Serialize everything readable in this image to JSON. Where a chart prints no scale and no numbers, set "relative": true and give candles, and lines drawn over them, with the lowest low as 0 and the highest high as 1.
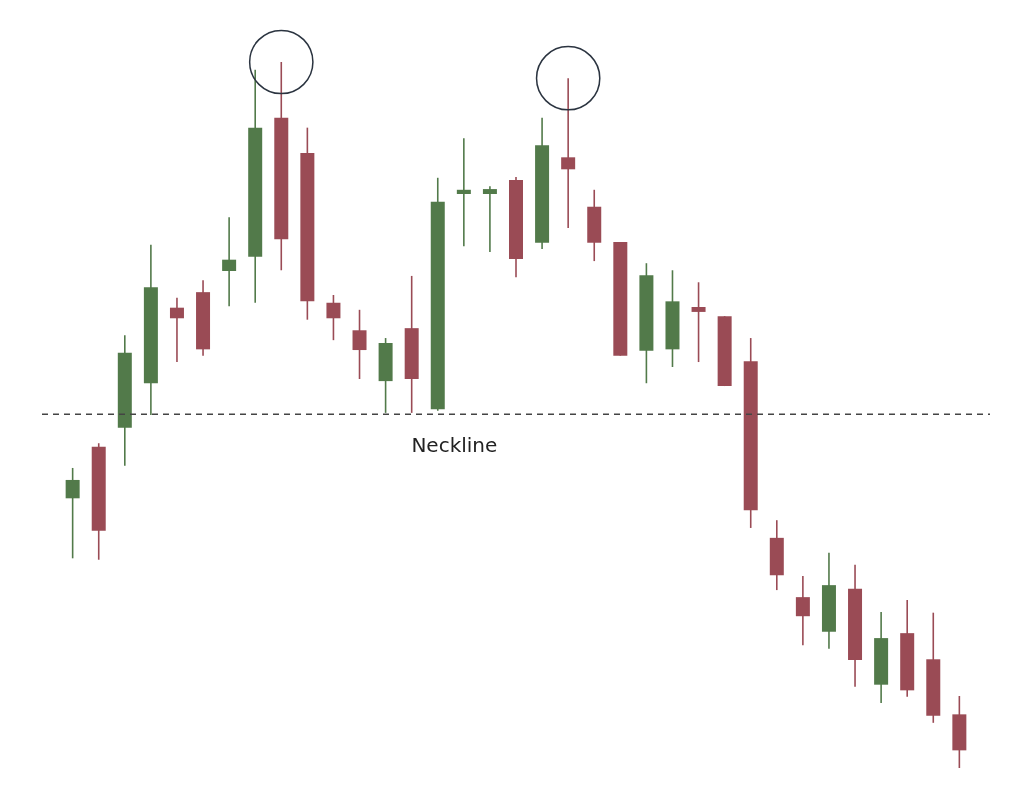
{
  "chart_data": {
    "type": "candlestick",
    "relative": true,
    "tick_labels": false,
    "categories": [
      null,
      null,
      null,
      null,
      null,
      null,
      null,
      null,
      null,
      null,
      null,
      null,
      null,
      null,
      null,
      null,
      null,
      null,
      null,
      null,
      null,
      null,
      null,
      null,
      null,
      null,
      null,
      null,
      null,
      null,
      null,
      null,
      null,
      null,
      null
    ],
    "ohlc": [
      [
        0.382,
        0.425,
        0.297,
        0.408
      ],
      [
        0.455,
        0.46,
        0.295,
        0.336
      ],
      [
        0.482,
        0.613,
        0.428,
        0.588
      ],
      [
        0.545,
        0.741,
        0.5,
        0.681
      ],
      [
        0.652,
        0.666,
        0.575,
        0.637
      ],
      [
        0.674,
        0.691,
        0.584,
        0.593
      ],
      [
        0.704,
        0.78,
        0.654,
        0.72
      ],
      [
        0.724,
        0.989,
        0.659,
        0.907
      ],
      [
        0.921,
        1.0,
        0.705,
        0.749
      ],
      [
        0.871,
        0.907,
        0.635,
        0.661
      ],
      [
        0.659,
        0.67,
        0.606,
        0.637
      ],
      [
        0.62,
        0.649,
        0.551,
        0.592
      ],
      [
        0.548,
        0.609,
        0.503,
        0.602
      ],
      [
        0.623,
        0.697,
        0.503,
        0.551
      ],
      [
        0.508,
        0.836,
        0.506,
        0.802
      ],
      [
        0.813,
        0.892,
        0.739,
        0.819
      ],
      [
        0.813,
        0.824,
        0.731,
        0.82
      ],
      [
        0.833,
        0.837,
        0.695,
        0.721
      ],
      [
        0.744,
        0.921,
        0.735,
        0.882
      ],
      [
        0.865,
        0.977,
        0.765,
        0.848
      ],
      [
        0.795,
        0.819,
        0.718,
        0.744
      ],
      [
        0.745,
        0.745,
        0.584,
        0.584
      ],
      [
        0.591,
        0.715,
        0.545,
        0.698
      ],
      [
        0.593,
        0.705,
        0.568,
        0.661
      ],
      [
        0.653,
        0.688,
        0.575,
        0.646
      ],
      [
        0.64,
        0.64,
        0.541,
        0.541
      ],
      [
        0.576,
        0.609,
        0.34,
        0.365
      ],
      [
        0.326,
        0.351,
        0.252,
        0.273
      ],
      [
        0.242,
        0.272,
        0.174,
        0.215
      ],
      [
        0.193,
        0.305,
        0.169,
        0.259
      ],
      [
        0.254,
        0.288,
        0.115,
        0.153
      ],
      [
        0.118,
        0.221,
        0.092,
        0.184
      ],
      [
        0.191,
        0.238,
        0.101,
        0.11
      ],
      [
        0.154,
        0.22,
        0.064,
        0.074
      ],
      [
        0.076,
        0.102,
        0.0,
        0.025
      ]
    ],
    "colors": [
      "#527a4a",
      "#9a4b55",
      "#527a4a",
      "#527a4a",
      "#9a4b55",
      "#9a4b55",
      "#527a4a",
      "#527a4a",
      "#9a4b55",
      "#9a4b55",
      "#9a4b55",
      "#9a4b55",
      "#527a4a",
      "#9a4b55",
      "#527a4a",
      "#527a4a",
      "#527a4a",
      "#9a4b55",
      "#527a4a",
      "#9a4b55",
      "#9a4b55",
      "#9a4b55",
      "#527a4a",
      "#527a4a",
      "#9a4b55",
      "#9a4b55",
      "#9a4b55",
      "#9a4b55",
      "#9a4b55",
      "#527a4a",
      "#9a4b55",
      "#527a4a",
      "#9a4b55",
      "#9a4b55",
      "#9a4b55"
    ],
    "ref_lines": [
      {
        "axis": "y",
        "value": 0.501,
        "label": "Neckline",
        "color": "#444444",
        "line_style": "dashed"
      }
    ]
  }
}
